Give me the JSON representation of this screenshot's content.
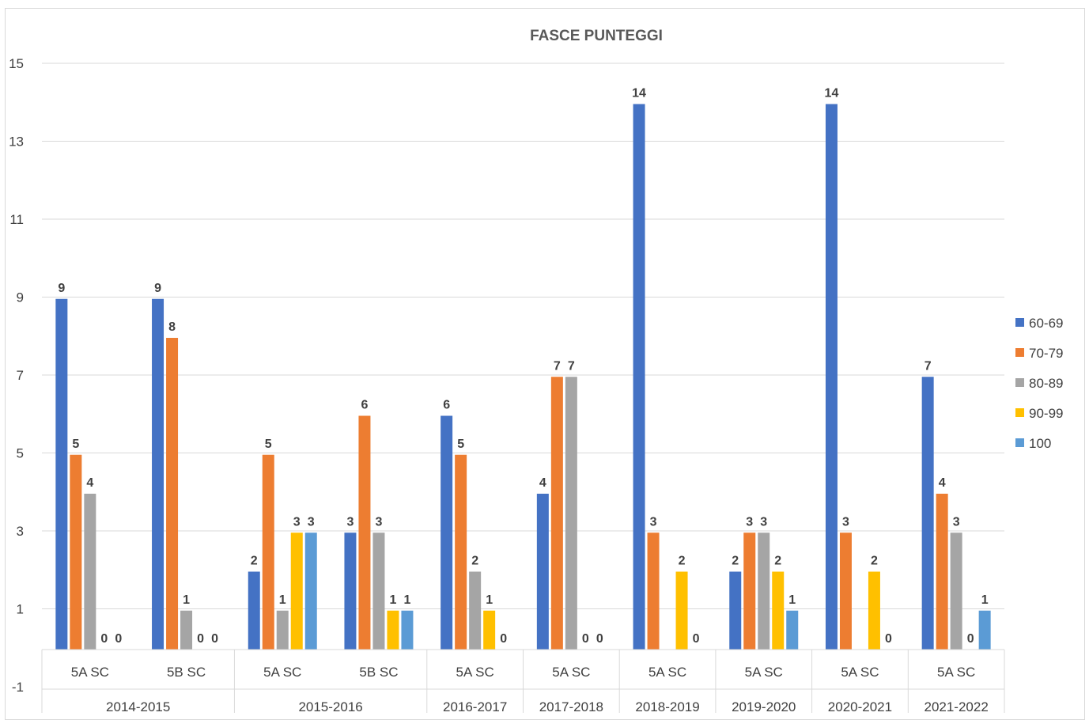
{
  "chart_data": {
    "type": "bar",
    "title": "FASCE PUNTEGGI",
    "ylim": [
      -1,
      15
    ],
    "yticks": [
      -1,
      1,
      3,
      5,
      7,
      9,
      11,
      13,
      15
    ],
    "grid": true,
    "legend_position": "right",
    "categories": [
      "5A SC",
      "5B SC",
      "5A SC",
      "5B SC",
      "5A SC",
      "5A SC",
      "5A SC",
      "5A SC",
      "5A SC",
      "5A SC"
    ],
    "groups": [
      {
        "label": "2014-2015",
        "count": 2
      },
      {
        "label": "2015-2016",
        "count": 2
      },
      {
        "label": "2016-2017",
        "count": 1
      },
      {
        "label": "2017-2018",
        "count": 1
      },
      {
        "label": "2018-2019",
        "count": 1
      },
      {
        "label": "2019-2020",
        "count": 1
      },
      {
        "label": "2020-2021",
        "count": 1
      },
      {
        "label": "2021-2022",
        "count": 1
      }
    ],
    "series": [
      {
        "name": "60-69",
        "color": "#4472c4",
        "values": [
          9,
          9,
          2,
          3,
          6,
          4,
          14,
          2,
          14,
          7
        ]
      },
      {
        "name": "70-79",
        "color": "#ed7d31",
        "values": [
          5,
          8,
          5,
          6,
          5,
          7,
          3,
          3,
          3,
          4
        ]
      },
      {
        "name": "80-89",
        "color": "#a5a5a5",
        "values": [
          4,
          1,
          1,
          3,
          2,
          7,
          null,
          3,
          null,
          3
        ]
      },
      {
        "name": "90-99",
        "color": "#ffc000",
        "values": [
          0,
          0,
          3,
          1,
          1,
          0,
          2,
          2,
          2,
          0
        ]
      },
      {
        "name": "100",
        "color": "#5b9bd5",
        "values": [
          0,
          0,
          3,
          1,
          0,
          0,
          0,
          1,
          0,
          1
        ]
      }
    ]
  }
}
